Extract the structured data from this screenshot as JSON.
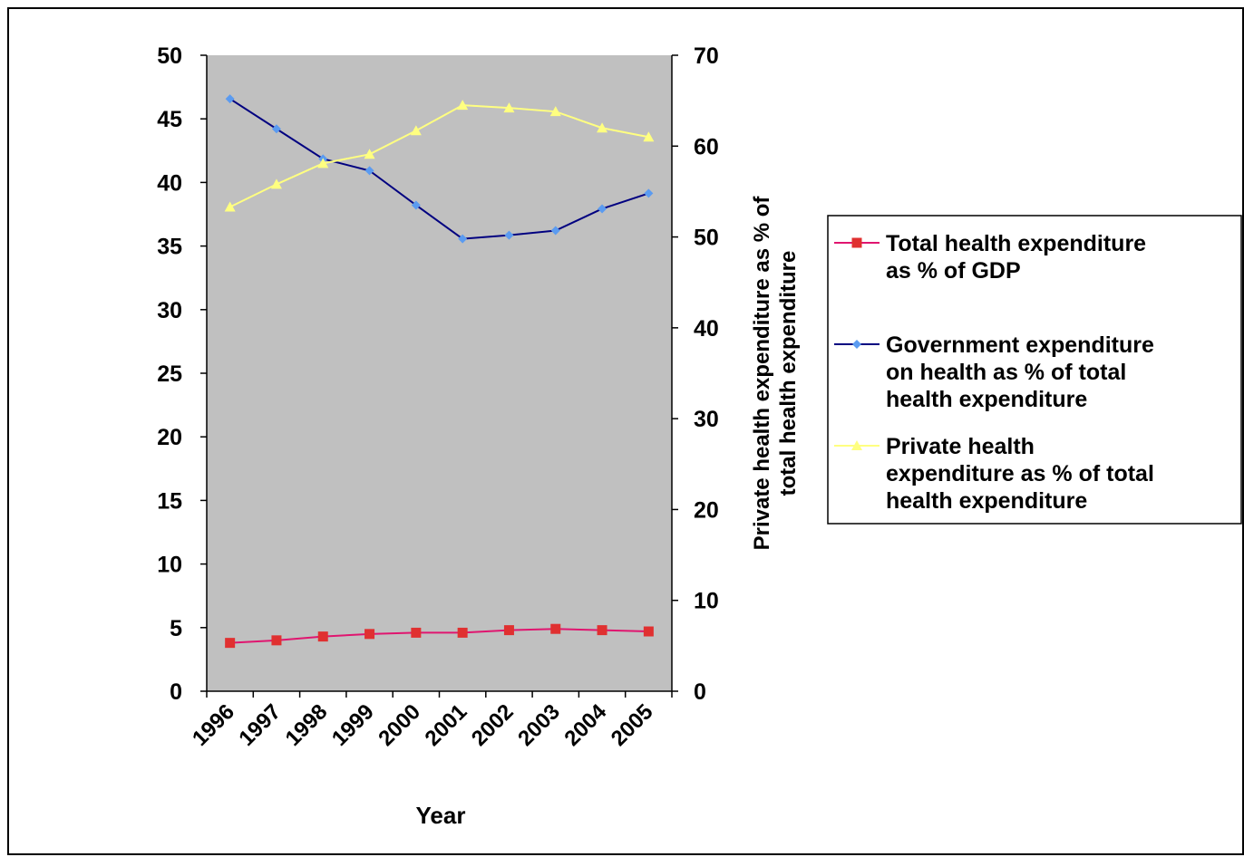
{
  "chart_data": {
    "type": "line",
    "categories": [
      "1996",
      "1997",
      "1998",
      "1999",
      "2000",
      "2001",
      "2002",
      "2003",
      "2004",
      "2005"
    ],
    "xlabel": "Year",
    "ylabel_left": "",
    "ylabel_right": "Private health expenditure as % of total health expenditure",
    "ylim_left": [
      0,
      50
    ],
    "yticks_left": [
      0,
      5,
      10,
      15,
      20,
      25,
      30,
      35,
      40,
      45,
      50
    ],
    "ylim_right": [
      0,
      70
    ],
    "yticks_right": [
      0,
      10,
      20,
      30,
      40,
      50,
      60,
      70
    ],
    "plot_background": "#c0c0c0",
    "grid": false,
    "legend_position": "right",
    "series": [
      {
        "name": "Total health expenditure as % of GDP",
        "axis": "left",
        "color": "#e0156f",
        "marker_color": "#e03030",
        "marker": "square",
        "values": [
          3.8,
          4.0,
          4.3,
          4.5,
          4.6,
          4.6,
          4.8,
          4.9,
          4.8,
          4.7
        ]
      },
      {
        "name": "Government expenditure on health as % of total health expenditure",
        "axis": "right",
        "color": "#000080",
        "marker_color": "#5b9bf0",
        "marker": "diamond",
        "values": [
          65.2,
          61.9,
          58.6,
          57.3,
          53.5,
          49.8,
          50.2,
          50.7,
          53.1,
          54.8
        ]
      },
      {
        "name": "Private health expenditure as % of total health expenditure",
        "axis": "right",
        "color": "#ffff80",
        "marker_color": "#ffff80",
        "marker": "triangle",
        "values": [
          53.3,
          55.8,
          58.1,
          59.1,
          61.7,
          64.5,
          64.2,
          63.8,
          62.0,
          61.0
        ]
      }
    ]
  }
}
